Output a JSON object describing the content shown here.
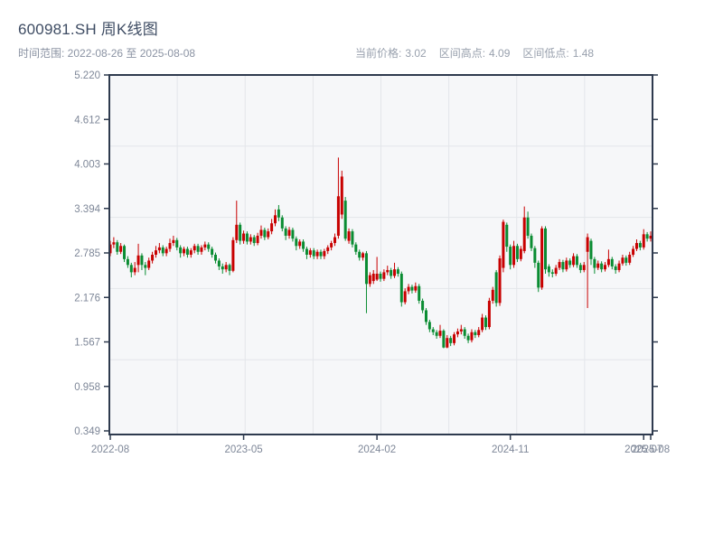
{
  "header": {
    "title": "600981.SH 周K线图",
    "subtitle": "时间范围: 2022-08-26 至 2025-08-08",
    "stats": [
      {
        "label": "当前价格:",
        "value": "3.02"
      },
      {
        "label": "区间高点:",
        "value": "4.09"
      },
      {
        "label": "区间低点:",
        "value": "1.48"
      }
    ]
  },
  "chart_data": {
    "type": "candlestick",
    "title": "600981.SH 周K线图",
    "frequency": "weekly",
    "start_date": "2022-08-26",
    "end_date": "2025-08-08",
    "current_price": 3.02,
    "range_high": 4.09,
    "range_low": 1.48,
    "ylim": [
      0.349,
      5.22
    ],
    "grid": true,
    "colors": {
      "up": "#c80000",
      "down": "#0a8c32"
    },
    "y_ticks": [
      "5.220",
      "4.612",
      "4.003",
      "3.394",
      "2.785",
      "2.176",
      "1.567",
      "0.958",
      "0.349"
    ],
    "x_ticks": {
      "labels": [
        "2022-08",
        "2023-05",
        "2024-02",
        "2024-11",
        "2025-07",
        "2025-08"
      ],
      "indices": [
        0,
        38,
        76,
        114,
        152,
        154
      ]
    },
    "candle_format": [
      "open",
      "high",
      "low",
      "close"
    ],
    "candles": [
      [
        2.78,
        2.95,
        2.74,
        2.9
      ],
      [
        2.9,
        3.0,
        2.85,
        2.93
      ],
      [
        2.93,
        2.96,
        2.76,
        2.8
      ],
      [
        2.8,
        2.92,
        2.77,
        2.88
      ],
      [
        2.88,
        2.9,
        2.66,
        2.7
      ],
      [
        2.7,
        2.74,
        2.58,
        2.62
      ],
      [
        2.62,
        2.65,
        2.45,
        2.52
      ],
      [
        2.52,
        2.66,
        2.48,
        2.58
      ],
      [
        2.62,
        2.91,
        2.52,
        2.75
      ],
      [
        2.75,
        2.78,
        2.55,
        2.62
      ],
      [
        2.62,
        2.66,
        2.48,
        2.58
      ],
      [
        2.58,
        2.72,
        2.55,
        2.68
      ],
      [
        2.68,
        2.8,
        2.64,
        2.76
      ],
      [
        2.76,
        2.88,
        2.72,
        2.82
      ],
      [
        2.82,
        2.92,
        2.78,
        2.86
      ],
      [
        2.86,
        2.89,
        2.74,
        2.78
      ],
      [
        2.78,
        2.87,
        2.74,
        2.84
      ],
      [
        2.84,
        2.98,
        2.8,
        2.92
      ],
      [
        2.92,
        3.02,
        2.88,
        2.96
      ],
      [
        2.96,
        2.99,
        2.82,
        2.86
      ],
      [
        2.86,
        2.89,
        2.72,
        2.78
      ],
      [
        2.78,
        2.87,
        2.74,
        2.84
      ],
      [
        2.84,
        2.87,
        2.72,
        2.76
      ],
      [
        2.76,
        2.85,
        2.72,
        2.82
      ],
      [
        2.82,
        2.91,
        2.78,
        2.88
      ],
      [
        2.88,
        2.91,
        2.76,
        2.8
      ],
      [
        2.8,
        2.89,
        2.76,
        2.86
      ],
      [
        2.86,
        2.94,
        2.82,
        2.9
      ],
      [
        2.9,
        2.93,
        2.8,
        2.84
      ],
      [
        2.84,
        2.87,
        2.72,
        2.76
      ],
      [
        2.76,
        2.79,
        2.64,
        2.68
      ],
      [
        2.68,
        2.71,
        2.55,
        2.6
      ],
      [
        2.6,
        2.64,
        2.5,
        2.56
      ],
      [
        2.56,
        2.66,
        2.52,
        2.62
      ],
      [
        2.62,
        2.64,
        2.48,
        2.54
      ],
      [
        2.54,
        3.0,
        2.52,
        2.96
      ],
      [
        2.96,
        3.5,
        2.92,
        3.17
      ],
      [
        3.17,
        3.2,
        2.9,
        2.95
      ],
      [
        2.95,
        3.09,
        2.91,
        3.05
      ],
      [
        3.05,
        3.08,
        2.9,
        2.94
      ],
      [
        2.94,
        3.04,
        2.9,
        3.0
      ],
      [
        3.0,
        3.03,
        2.88,
        2.92
      ],
      [
        2.92,
        3.06,
        2.89,
        3.02
      ],
      [
        3.02,
        3.16,
        2.98,
        3.1
      ],
      [
        3.1,
        3.13,
        2.96,
        3.0
      ],
      [
        3.0,
        3.12,
        2.97,
        3.08
      ],
      [
        3.08,
        3.25,
        3.04,
        3.19
      ],
      [
        3.19,
        3.38,
        3.15,
        3.3
      ],
      [
        3.38,
        3.44,
        3.22,
        3.27
      ],
      [
        3.27,
        3.3,
        3.08,
        3.12
      ],
      [
        3.12,
        3.15,
        2.96,
        3.02
      ],
      [
        3.02,
        3.14,
        2.98,
        3.1
      ],
      [
        3.1,
        3.13,
        2.94,
        2.98
      ],
      [
        2.98,
        3.01,
        2.82,
        2.88
      ],
      [
        2.88,
        2.97,
        2.84,
        2.94
      ],
      [
        2.94,
        2.97,
        2.8,
        2.84
      ],
      [
        2.84,
        2.87,
        2.7,
        2.76
      ],
      [
        2.76,
        2.85,
        2.72,
        2.82
      ],
      [
        2.82,
        2.85,
        2.7,
        2.74
      ],
      [
        2.74,
        2.83,
        2.7,
        2.8
      ],
      [
        2.8,
        2.83,
        2.7,
        2.74
      ],
      [
        2.74,
        2.84,
        2.7,
        2.81
      ],
      [
        2.81,
        2.89,
        2.77,
        2.86
      ],
      [
        2.86,
        2.95,
        2.82,
        2.92
      ],
      [
        2.92,
        3.05,
        2.88,
        3.0
      ],
      [
        3.02,
        4.09,
        2.98,
        3.56
      ],
      [
        3.31,
        3.91,
        3.25,
        3.83
      ],
      [
        3.5,
        3.55,
        2.95,
        2.98
      ],
      [
        2.95,
        3.12,
        2.91,
        3.08
      ],
      [
        3.08,
        3.11,
        2.86,
        2.9
      ],
      [
        2.9,
        2.93,
        2.76,
        2.8
      ],
      [
        2.8,
        2.83,
        2.68,
        2.72
      ],
      [
        2.72,
        2.8,
        2.68,
        2.78
      ],
      [
        2.78,
        2.81,
        1.96,
        2.36
      ],
      [
        2.36,
        2.52,
        2.32,
        2.48
      ],
      [
        2.4,
        2.55,
        2.36,
        2.5
      ],
      [
        2.42,
        2.73,
        2.4,
        2.5
      ],
      [
        2.5,
        2.53,
        2.39,
        2.43
      ],
      [
        2.43,
        2.56,
        2.4,
        2.52
      ],
      [
        2.52,
        2.61,
        2.48,
        2.55
      ],
      [
        2.55,
        2.58,
        2.43,
        2.47
      ],
      [
        2.47,
        2.65,
        2.44,
        2.56
      ],
      [
        2.56,
        2.59,
        2.46,
        2.5
      ],
      [
        2.5,
        2.53,
        2.05,
        2.11
      ],
      [
        2.11,
        2.3,
        2.08,
        2.26
      ],
      [
        2.26,
        2.36,
        2.22,
        2.32
      ],
      [
        2.32,
        2.35,
        2.23,
        2.27
      ],
      [
        2.27,
        2.38,
        2.24,
        2.33
      ],
      [
        2.33,
        2.36,
        2.09,
        2.13
      ],
      [
        2.13,
        2.16,
        1.96,
        2.0
      ],
      [
        2.0,
        2.03,
        1.8,
        1.84
      ],
      [
        1.84,
        1.87,
        1.7,
        1.74
      ],
      [
        1.74,
        1.77,
        1.66,
        1.7
      ],
      [
        1.7,
        1.73,
        1.61,
        1.65
      ],
      [
        1.65,
        1.8,
        1.62,
        1.72
      ],
      [
        1.72,
        1.74,
        1.48,
        1.49
      ],
      [
        1.49,
        1.66,
        1.48,
        1.62
      ],
      [
        1.62,
        1.65,
        1.51,
        1.55
      ],
      [
        1.55,
        1.7,
        1.52,
        1.67
      ],
      [
        1.67,
        1.75,
        1.63,
        1.71
      ],
      [
        1.71,
        1.8,
        1.67,
        1.74
      ],
      [
        1.74,
        1.77,
        1.61,
        1.65
      ],
      [
        1.65,
        1.68,
        1.55,
        1.59
      ],
      [
        1.59,
        1.74,
        1.56,
        1.7
      ],
      [
        1.7,
        1.73,
        1.62,
        1.66
      ],
      [
        1.66,
        1.77,
        1.63,
        1.73
      ],
      [
        1.73,
        1.95,
        1.7,
        1.9
      ],
      [
        1.9,
        1.93,
        1.73,
        1.77
      ],
      [
        1.77,
        2.17,
        1.74,
        2.13
      ],
      [
        2.13,
        2.32,
        2.09,
        2.28
      ],
      [
        2.52,
        2.55,
        2.05,
        2.1
      ],
      [
        2.1,
        2.75,
        2.06,
        2.71
      ],
      [
        2.58,
        3.24,
        2.52,
        3.21
      ],
      [
        3.17,
        3.2,
        2.8,
        2.87
      ],
      [
        2.87,
        2.9,
        2.56,
        2.62
      ],
      [
        2.62,
        2.95,
        2.58,
        2.88
      ],
      [
        2.88,
        2.91,
        2.66,
        2.7
      ],
      [
        2.7,
        2.88,
        2.67,
        2.84
      ],
      [
        2.81,
        3.42,
        2.78,
        3.27
      ],
      [
        3.27,
        3.35,
        2.98,
        3.02
      ],
      [
        3.02,
        3.05,
        2.81,
        2.85
      ],
      [
        2.85,
        2.88,
        2.58,
        2.65
      ],
      [
        2.65,
        2.68,
        2.25,
        2.31
      ],
      [
        2.31,
        3.15,
        2.28,
        3.12
      ],
      [
        3.12,
        3.15,
        2.5,
        2.56
      ],
      [
        2.6,
        2.63,
        2.46,
        2.52
      ],
      [
        2.52,
        2.56,
        2.45,
        2.5
      ],
      [
        2.5,
        2.62,
        2.47,
        2.58
      ],
      [
        2.58,
        2.7,
        2.55,
        2.66
      ],
      [
        2.66,
        2.69,
        2.52,
        2.56
      ],
      [
        2.56,
        2.72,
        2.53,
        2.68
      ],
      [
        2.68,
        2.71,
        2.58,
        2.62
      ],
      [
        2.62,
        2.78,
        2.59,
        2.74
      ],
      [
        2.74,
        2.77,
        2.58,
        2.62
      ],
      [
        2.62,
        2.65,
        2.51,
        2.55
      ],
      [
        2.55,
        2.66,
        2.52,
        2.62
      ],
      [
        2.8,
        3.05,
        2.03,
        3.0
      ],
      [
        2.95,
        2.98,
        2.62,
        2.7
      ],
      [
        2.7,
        2.73,
        2.5,
        2.58
      ],
      [
        2.58,
        2.68,
        2.55,
        2.64
      ],
      [
        2.64,
        2.67,
        2.52,
        2.56
      ],
      [
        2.56,
        2.66,
        2.53,
        2.62
      ],
      [
        2.62,
        2.83,
        2.59,
        2.7
      ],
      [
        2.7,
        2.73,
        2.56,
        2.6
      ],
      [
        2.6,
        2.63,
        2.5,
        2.55
      ],
      [
        2.55,
        2.68,
        2.52,
        2.64
      ],
      [
        2.64,
        2.76,
        2.61,
        2.72
      ],
      [
        2.72,
        2.75,
        2.61,
        2.65
      ],
      [
        2.65,
        2.8,
        2.62,
        2.76
      ],
      [
        2.76,
        2.88,
        2.73,
        2.84
      ],
      [
        2.84,
        2.97,
        2.81,
        2.92
      ],
      [
        2.92,
        2.95,
        2.82,
        2.86
      ],
      [
        2.86,
        3.11,
        2.83,
        3.04
      ],
      [
        3.04,
        3.07,
        2.94,
        2.98
      ],
      [
        2.98,
        3.08,
        2.94,
        3.02
      ]
    ]
  }
}
